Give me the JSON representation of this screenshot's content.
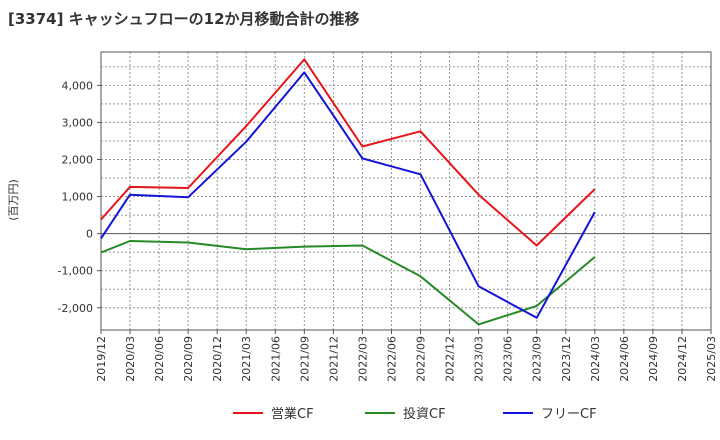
{
  "chart_data": {
    "type": "line",
    "title": "[3374]  キャッシュフローの12か月移動合計の推移",
    "ylabel": "(百万円)",
    "xlabel": "",
    "ylim": [
      -2600,
      4900
    ],
    "yticks": [
      -2000,
      -1000,
      0,
      1000,
      2000,
      3000,
      4000
    ],
    "ytick_labels": [
      "-2,000",
      "-1,000",
      "0",
      "1,000",
      "2,000",
      "3,000",
      "4,000"
    ],
    "categories": [
      "2019/12",
      "2020/03",
      "2020/06",
      "2020/09",
      "2020/12",
      "2021/03",
      "2021/06",
      "2021/09",
      "2021/12",
      "2022/03",
      "2022/06",
      "2022/09",
      "2022/12",
      "2023/03",
      "2023/06",
      "2023/09",
      "2023/12",
      "2024/03",
      "2024/06",
      "2024/09",
      "2024/12",
      "2025/03"
    ],
    "grid": true,
    "legend_position": "bottom",
    "series": [
      {
        "name": "営業CF",
        "color": "#e8141b",
        "points": [
          [
            "2019/12",
            380
          ],
          [
            "2020/03",
            1260
          ],
          [
            "2020/09",
            1230
          ],
          [
            "2021/03",
            2900
          ],
          [
            "2021/09",
            4700
          ],
          [
            "2022/03",
            2350
          ],
          [
            "2022/09",
            2760
          ],
          [
            "2023/03",
            1050
          ],
          [
            "2023/09",
            -320
          ],
          [
            "2024/03",
            1200
          ]
        ]
      },
      {
        "name": "投資CF",
        "color": "#268a26",
        "points": [
          [
            "2019/12",
            -510
          ],
          [
            "2020/03",
            -200
          ],
          [
            "2020/09",
            -240
          ],
          [
            "2021/03",
            -420
          ],
          [
            "2021/09",
            -350
          ],
          [
            "2022/03",
            -320
          ],
          [
            "2022/09",
            -1150
          ],
          [
            "2023/03",
            -2450
          ],
          [
            "2023/09",
            -1950
          ],
          [
            "2024/03",
            -630
          ]
        ]
      },
      {
        "name": "フリーCF",
        "color": "#1414d8",
        "points": [
          [
            "2019/12",
            -130
          ],
          [
            "2020/03",
            1050
          ],
          [
            "2020/09",
            980
          ],
          [
            "2021/03",
            2480
          ],
          [
            "2021/09",
            4350
          ],
          [
            "2022/03",
            2030
          ],
          [
            "2022/09",
            1600
          ],
          [
            "2023/03",
            -1420
          ],
          [
            "2023/09",
            -2270
          ],
          [
            "2024/03",
            580
          ]
        ]
      }
    ]
  }
}
